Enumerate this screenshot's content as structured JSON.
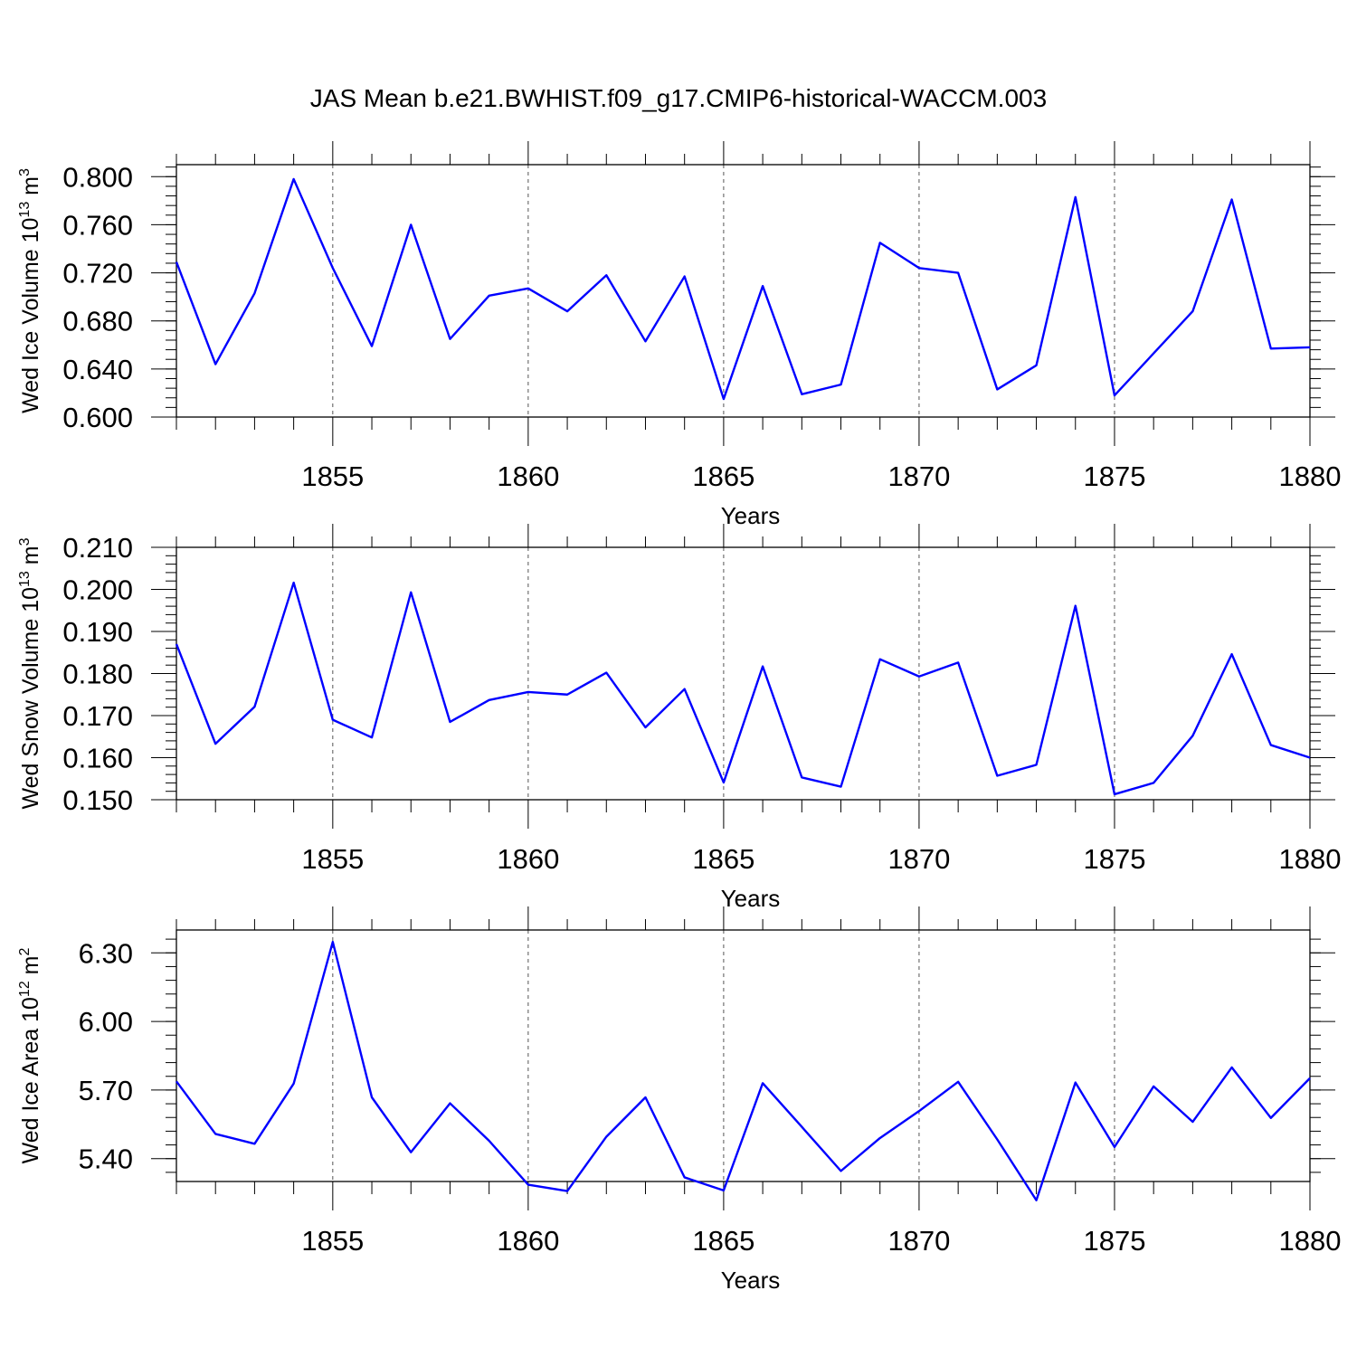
{
  "title": "JAS Mean b.e21.BWHIST.f09_g17.CMIP6-historical-WACCM.003",
  "line_color": "#0000ff",
  "chart_data": [
    {
      "type": "line",
      "ylabel": "Wed Ice Volume 10",
      "ylabel_exp": "13",
      "ylabel_unit": " m",
      "ylabel_unit_exp": "3",
      "xlabel": "Years",
      "xlim": [
        1851,
        1880
      ],
      "ylim": [
        0.6,
        0.81
      ],
      "yticks": [
        0.6,
        0.64,
        0.68,
        0.72,
        0.76,
        0.8
      ],
      "ytick_labels": [
        "0.600",
        "0.640",
        "0.680",
        "0.720",
        "0.760",
        "0.800"
      ],
      "xticks": [
        1855,
        1860,
        1865,
        1870,
        1875,
        1880
      ],
      "xtick_labels": [
        "1855",
        "1860",
        "1865",
        "1870",
        "1875",
        "1880"
      ],
      "x": [
        1851,
        1852,
        1853,
        1854,
        1855,
        1856,
        1857,
        1858,
        1859,
        1860,
        1861,
        1862,
        1863,
        1864,
        1865,
        1866,
        1867,
        1868,
        1869,
        1870,
        1871,
        1872,
        1873,
        1874,
        1875,
        1876,
        1877,
        1878,
        1879,
        1880
      ],
      "values": [
        0.729,
        0.644,
        0.703,
        0.798,
        0.724,
        0.659,
        0.76,
        0.665,
        0.701,
        0.707,
        0.688,
        0.718,
        0.663,
        0.717,
        0.615,
        0.709,
        0.619,
        0.627,
        0.745,
        0.724,
        0.72,
        0.623,
        0.643,
        0.783,
        0.618,
        0.653,
        0.688,
        0.781,
        0.657,
        0.658
      ]
    },
    {
      "type": "line",
      "ylabel": "Wed Snow Volume 10",
      "ylabel_exp": "13",
      "ylabel_unit": " m",
      "ylabel_unit_exp": "3",
      "xlabel": "Years",
      "xlim": [
        1851,
        1880
      ],
      "ylim": [
        0.15,
        0.21
      ],
      "yticks": [
        0.15,
        0.16,
        0.17,
        0.18,
        0.19,
        0.2,
        0.21
      ],
      "ytick_labels": [
        "0.150",
        "0.160",
        "0.170",
        "0.180",
        "0.190",
        "0.200",
        "0.210"
      ],
      "xticks": [
        1855,
        1860,
        1865,
        1870,
        1875,
        1880
      ],
      "xtick_labels": [
        "1855",
        "1860",
        "1865",
        "1870",
        "1875",
        "1880"
      ],
      "x": [
        1851,
        1852,
        1853,
        1854,
        1855,
        1856,
        1857,
        1858,
        1859,
        1860,
        1861,
        1862,
        1863,
        1864,
        1865,
        1866,
        1867,
        1868,
        1869,
        1870,
        1871,
        1872,
        1873,
        1874,
        1875,
        1876,
        1877,
        1878,
        1879,
        1880
      ],
      "values": [
        0.187,
        0.1633,
        0.1721,
        0.2016,
        0.169,
        0.1648,
        0.1993,
        0.1685,
        0.1737,
        0.1756,
        0.175,
        0.1802,
        0.1672,
        0.1763,
        0.1541,
        0.1817,
        0.1553,
        0.1531,
        0.1834,
        0.1793,
        0.1826,
        0.1557,
        0.1583,
        0.1961,
        0.1513,
        0.154,
        0.1652,
        0.1846,
        0.163,
        0.16
      ]
    },
    {
      "type": "line",
      "ylabel": "Wed Ice Area 10",
      "ylabel_exp": "12",
      "ylabel_unit": " m",
      "ylabel_unit_exp": "2",
      "xlabel": "Years",
      "xlim": [
        1851,
        1880
      ],
      "ylim": [
        5.3,
        6.4
      ],
      "yticks": [
        5.4,
        5.7,
        6.0,
        6.3
      ],
      "ytick_labels": [
        "5.40",
        "5.70",
        "6.00",
        "6.30"
      ],
      "xticks": [
        1855,
        1860,
        1865,
        1870,
        1875,
        1880
      ],
      "xtick_labels": [
        "1855",
        "1860",
        "1865",
        "1870",
        "1875",
        "1880"
      ],
      "x": [
        1851,
        1852,
        1853,
        1854,
        1855,
        1856,
        1857,
        1858,
        1859,
        1860,
        1861,
        1862,
        1863,
        1864,
        1865,
        1866,
        1867,
        1868,
        1869,
        1870,
        1871,
        1872,
        1873,
        1874,
        1875,
        1876,
        1877,
        1878,
        1879,
        1880
      ],
      "values": [
        5.738,
        5.508,
        5.465,
        5.728,
        6.348,
        5.668,
        5.428,
        5.642,
        5.478,
        5.286,
        5.258,
        5.496,
        5.668,
        5.318,
        5.261,
        5.73,
        5.539,
        5.346,
        5.49,
        5.608,
        5.736,
        5.484,
        5.218,
        5.733,
        5.451,
        5.716,
        5.561,
        5.799,
        5.578,
        5.752
      ]
    }
  ]
}
